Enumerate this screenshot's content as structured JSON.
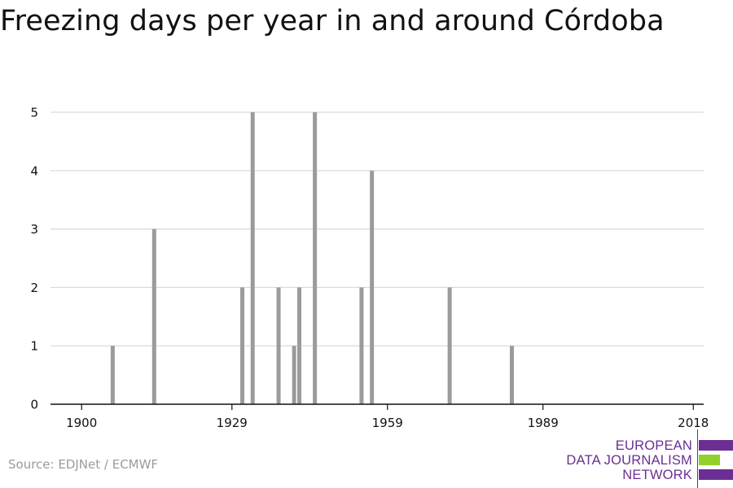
{
  "title": "Freezing days per year in and around Córdoba",
  "source": "Source: EDJNet / ECMWF",
  "logo": {
    "line1": "EUROPEAN",
    "line2": "DATA JOURNALISM",
    "line3": "NETWORK",
    "colors": {
      "purple": "#6b2f93",
      "green": "#8fd12a"
    }
  },
  "colors": {
    "bar": "#9b9b9b",
    "grid": "#d9d9d9",
    "axis": "#111111"
  },
  "chart_data": {
    "type": "bar",
    "title": "Freezing days per year in and around Córdoba",
    "xlabel": "",
    "ylabel": "",
    "xlim": [
      1894,
      2020
    ],
    "ylim": [
      0,
      5
    ],
    "xticks": [
      1900,
      1929,
      1959,
      1989,
      2018
    ],
    "yticks": [
      0,
      1,
      2,
      3,
      4,
      5
    ],
    "grid": true,
    "x": [
      1906,
      1914,
      1931,
      1933,
      1938,
      1941,
      1942,
      1945,
      1954,
      1956,
      1971,
      1983
    ],
    "values": [
      1,
      3,
      2,
      5,
      2,
      1,
      2,
      5,
      2,
      4,
      2,
      1
    ]
  }
}
